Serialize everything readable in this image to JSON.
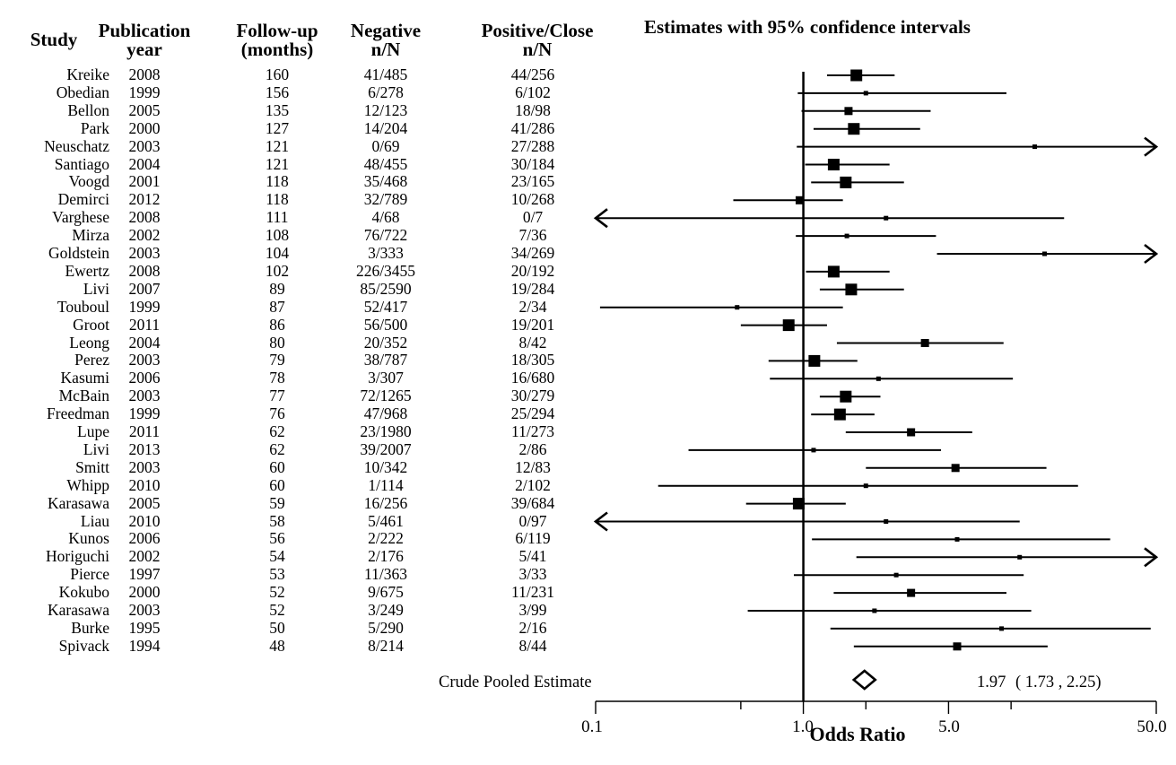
{
  "headers": {
    "study": "Study",
    "year": [
      "Publication",
      "year"
    ],
    "followup": [
      "Follow-up",
      "(months)"
    ],
    "negative": [
      "Negative",
      "n/N"
    ],
    "positive": [
      "Positive/Close",
      "n/N"
    ]
  },
  "chart_data": {
    "type": "forest",
    "title": "Estimates with 95% confidence intervals",
    "xlabel": "Odds Ratio",
    "xscale": "log",
    "xlim": [
      0.1,
      50.0
    ],
    "xticks": [
      "0.1",
      "1.0",
      "5.0",
      "50.0"
    ],
    "reference_line": 1.0,
    "studies": [
      {
        "name": "Kreike",
        "year": "2008",
        "followup": "160",
        "negative": "41/485",
        "positive": "44/256",
        "or": 1.8,
        "lo": 1.3,
        "hi": 2.75,
        "weight": "large"
      },
      {
        "name": "Obedian",
        "year": "1999",
        "followup": "156",
        "negative": "6/278",
        "positive": "6/102",
        "or": 2.0,
        "lo": 0.94,
        "hi": 9.5,
        "weight": "small"
      },
      {
        "name": "Bellon",
        "year": "2005",
        "followup": "135",
        "negative": "12/123",
        "positive": "18/98",
        "or": 1.65,
        "lo": 0.98,
        "hi": 4.1,
        "weight": "medium"
      },
      {
        "name": "Park",
        "year": "2000",
        "followup": "127",
        "negative": "14/204",
        "positive": "41/286",
        "or": 1.75,
        "lo": 1.12,
        "hi": 3.65,
        "weight": "large"
      },
      {
        "name": "Neuschatz",
        "year": "2003",
        "followup": "121",
        "negative": "0/69",
        "positive": "27/288",
        "or": 13.0,
        "lo": 0.93,
        "hi": 50.0,
        "weight": "small",
        "arrow": "right"
      },
      {
        "name": "Santiago",
        "year": "2004",
        "followup": "121",
        "negative": "48/455",
        "positive": "30/184",
        "or": 1.4,
        "lo": 1.02,
        "hi": 2.6,
        "weight": "large"
      },
      {
        "name": "Voogd",
        "year": "2001",
        "followup": "118",
        "negative": "35/468",
        "positive": "23/165",
        "or": 1.6,
        "lo": 1.09,
        "hi": 3.05,
        "weight": "large"
      },
      {
        "name": "Demirci",
        "year": "2012",
        "followup": "118",
        "negative": "32/789",
        "positive": "10/268",
        "or": 0.96,
        "lo": 0.46,
        "hi": 1.55,
        "weight": "medium"
      },
      {
        "name": "Varghese",
        "year": "2008",
        "followup": "111",
        "negative": "4/68",
        "positive": "0/7",
        "or": 2.5,
        "lo": 0.1,
        "hi": 18.0,
        "weight": "small",
        "arrow": "left"
      },
      {
        "name": "Mirza",
        "year": "2002",
        "followup": "108",
        "negative": "76/722",
        "positive": "7/36",
        "or": 1.62,
        "lo": 0.92,
        "hi": 4.35,
        "weight": "small"
      },
      {
        "name": "Goldstein",
        "year": "2003",
        "followup": "104",
        "negative": "3/333",
        "positive": "34/269",
        "or": 14.5,
        "lo": 4.4,
        "hi": 50.0,
        "weight": "small",
        "arrow": "right"
      },
      {
        "name": "Ewertz",
        "year": "2008",
        "followup": "102",
        "negative": "226/3455",
        "positive": "20/192",
        "or": 1.4,
        "lo": 1.03,
        "hi": 2.6,
        "weight": "large"
      },
      {
        "name": "Livi",
        "year": "2007",
        "followup": "89",
        "negative": "85/2590",
        "positive": "19/284",
        "or": 1.7,
        "lo": 1.2,
        "hi": 3.05,
        "weight": "large"
      },
      {
        "name": "Touboul",
        "year": "1999",
        "followup": "87",
        "negative": "52/417",
        "positive": "2/34",
        "or": 0.48,
        "lo": 0.105,
        "hi": 1.55,
        "weight": "small"
      },
      {
        "name": "Groot",
        "year": "2011",
        "followup": "86",
        "negative": "56/500",
        "positive": "19/201",
        "or": 0.85,
        "lo": 0.5,
        "hi": 1.3,
        "weight": "large"
      },
      {
        "name": "Leong",
        "year": "2004",
        "followup": "80",
        "negative": "20/352",
        "positive": "8/42",
        "or": 3.85,
        "lo": 1.45,
        "hi": 9.2,
        "weight": "medium"
      },
      {
        "name": "Perez",
        "year": "2003",
        "followup": "79",
        "negative": "38/787",
        "positive": "18/305",
        "or": 1.13,
        "lo": 0.68,
        "hi": 1.82,
        "weight": "large"
      },
      {
        "name": "Kasumi",
        "year": "2006",
        "followup": "78",
        "negative": "3/307",
        "positive": "16/680",
        "or": 2.3,
        "lo": 0.69,
        "hi": 10.2,
        "weight": "small"
      },
      {
        "name": "McBain",
        "year": "2003",
        "followup": "77",
        "negative": "72/1265",
        "positive": "30/279",
        "or": 1.6,
        "lo": 1.2,
        "hi": 2.35,
        "weight": "large"
      },
      {
        "name": "Freedman",
        "year": "1999",
        "followup": "76",
        "negative": "47/968",
        "positive": "25/294",
        "or": 1.5,
        "lo": 1.09,
        "hi": 2.2,
        "weight": "large"
      },
      {
        "name": "Lupe",
        "year": "2011",
        "followup": "62",
        "negative": "23/1980",
        "positive": "11/273",
        "or": 3.3,
        "lo": 1.6,
        "hi": 6.5,
        "weight": "medium"
      },
      {
        "name": "Livi",
        "year": "2013",
        "followup": "62",
        "negative": "39/2007",
        "positive": "2/86",
        "or": 1.12,
        "lo": 0.28,
        "hi": 4.6,
        "weight": "small"
      },
      {
        "name": "Smitt",
        "year": "2003",
        "followup": "60",
        "negative": "10/342",
        "positive": "12/83",
        "or": 5.4,
        "lo": 2.0,
        "hi": 14.8,
        "weight": "medium"
      },
      {
        "name": "Whipp",
        "year": "2010",
        "followup": "60",
        "negative": "1/114",
        "positive": "2/102",
        "or": 2.0,
        "lo": 0.2,
        "hi": 21.0,
        "weight": "small"
      },
      {
        "name": "Karasawa",
        "year": "2005",
        "followup": "59",
        "negative": "16/256",
        "positive": "39/684",
        "or": 0.95,
        "lo": 0.53,
        "hi": 1.6,
        "weight": "large"
      },
      {
        "name": "Liau",
        "year": "2010",
        "followup": "58",
        "negative": "5/461",
        "positive": "0/97",
        "or": 2.5,
        "lo": 0.1,
        "hi": 11.0,
        "weight": "small",
        "arrow": "left"
      },
      {
        "name": "Kunos",
        "year": "2006",
        "followup": "56",
        "negative": "2/222",
        "positive": "6/119",
        "or": 5.5,
        "lo": 1.1,
        "hi": 30.0,
        "weight": "small"
      },
      {
        "name": "Horiguchi",
        "year": "2002",
        "followup": "54",
        "negative": "2/176",
        "positive": "5/41",
        "or": 11.0,
        "lo": 1.8,
        "hi": 50.0,
        "weight": "small",
        "arrow": "right"
      },
      {
        "name": "Pierce",
        "year": "1997",
        "followup": "53",
        "negative": "11/363",
        "positive": "3/33",
        "or": 2.8,
        "lo": 0.9,
        "hi": 11.5,
        "weight": "small"
      },
      {
        "name": "Kokubo",
        "year": "2000",
        "followup": "52",
        "negative": "9/675",
        "positive": "11/231",
        "or": 3.3,
        "lo": 1.4,
        "hi": 9.5,
        "weight": "medium"
      },
      {
        "name": "Karasawa",
        "year": "2003",
        "followup": "52",
        "negative": "3/249",
        "positive": "3/99",
        "or": 2.2,
        "lo": 0.54,
        "hi": 12.5,
        "weight": "small"
      },
      {
        "name": "Burke",
        "year": "1995",
        "followup": "50",
        "negative": "5/290",
        "positive": "2/16",
        "or": 9.0,
        "lo": 1.35,
        "hi": 47.0,
        "weight": "small"
      },
      {
        "name": "Spivack",
        "year": "1994",
        "followup": "48",
        "negative": "8/214",
        "positive": "8/44",
        "or": 5.5,
        "lo": 1.75,
        "hi": 15.0,
        "weight": "medium"
      }
    ],
    "pooled": {
      "label": "Crude Pooled Estimate",
      "or": 1.97,
      "lo": 1.73,
      "hi": 2.25,
      "estimate_text": "1.97",
      "ci_text": "( 1.73 , 2.25)"
    }
  }
}
